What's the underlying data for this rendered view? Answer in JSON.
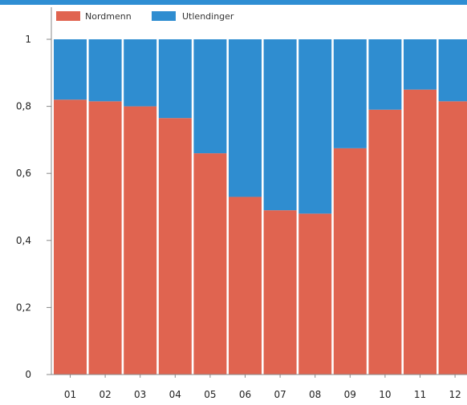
{
  "colors": {
    "nordmenn": "#e06450",
    "utlendinger": "#2f8dd0",
    "axis": "#888888",
    "gridline": "#e6e6e6",
    "top_bar": "#2f8ed3"
  },
  "chart_data": {
    "type": "bar",
    "stacked": true,
    "categories": [
      "01",
      "02",
      "03",
      "04",
      "05",
      "06",
      "07",
      "08",
      "09",
      "10",
      "11",
      "12"
    ],
    "series": [
      {
        "name": "Nordmenn",
        "values": [
          0.82,
          0.815,
          0.8,
          0.765,
          0.66,
          0.53,
          0.49,
          0.48,
          0.675,
          0.79,
          0.85,
          0.815
        ]
      },
      {
        "name": "Utlendinger",
        "values": [
          0.18,
          0.185,
          0.2,
          0.235,
          0.34,
          0.47,
          0.51,
          0.52,
          0.325,
          0.21,
          0.15,
          0.185
        ]
      }
    ],
    "ylim": [
      0,
      1
    ],
    "yticks": [
      0,
      0.2,
      0.4,
      0.6,
      0.8,
      1
    ],
    "ytick_labels": [
      "0",
      "0,2",
      "0,4",
      "0,6",
      "0,8",
      "1"
    ],
    "legend_position": "top-left",
    "grid": false
  }
}
